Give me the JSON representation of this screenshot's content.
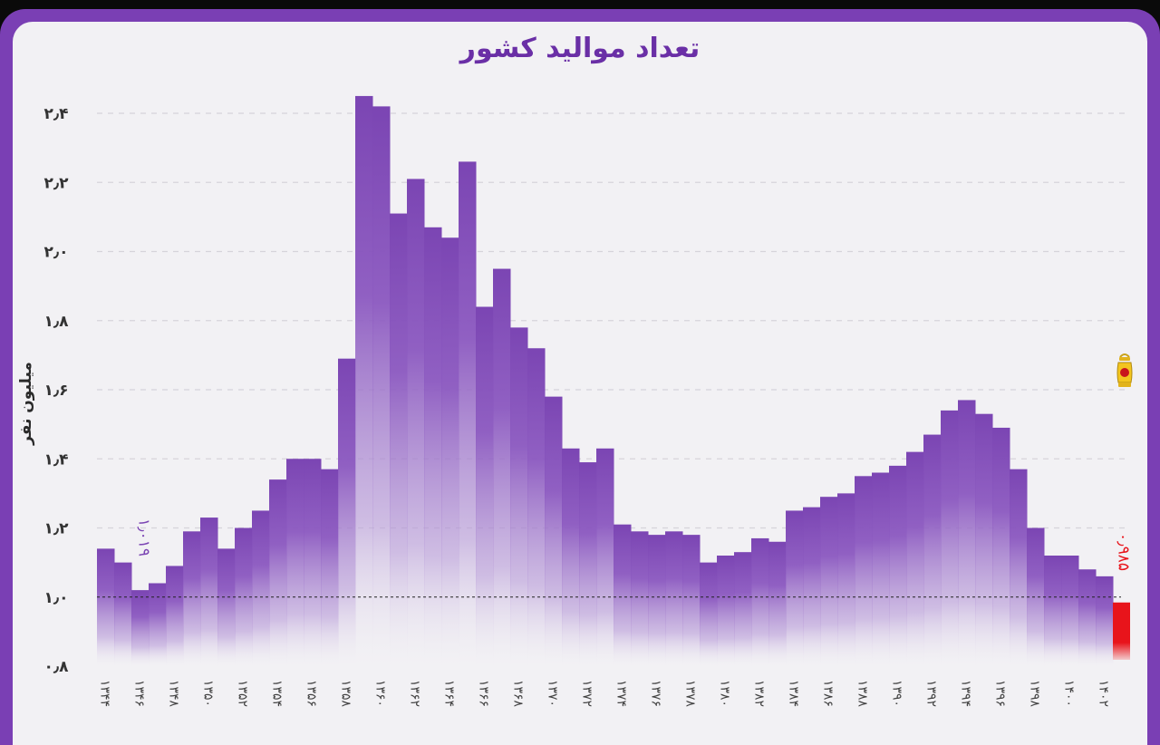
{
  "title": "تعداد موالید کشور",
  "colors": {
    "frame": "#7a3fb4",
    "bar": "#7b45b3",
    "highlight": "#e8141b",
    "annotation_first": "#7b45b3"
  },
  "chart_data": {
    "type": "bar",
    "title": "تعداد موالید کشور",
    "xlabel": "",
    "ylabel": "میلیون نفر",
    "ylim": [
      0.8,
      2.5
    ],
    "grid": true,
    "y_ticks": [
      "۰٫۸",
      "۱٫۰",
      "۱٫۲",
      "۱٫۴",
      "۱٫۶",
      "۱٫۸",
      "۲٫۰",
      "۲٫۲",
      "۲٫۴"
    ],
    "y_tick_values": [
      0.8,
      1.0,
      1.2,
      1.4,
      1.6,
      1.8,
      2.0,
      2.2,
      2.4
    ],
    "x_tick_labels": [
      "۱۳۴۴",
      "۱۳۴۶",
      "۱۳۴۸",
      "۱۳۵۰",
      "۱۳۵۲",
      "۱۳۵۴",
      "۱۳۵۶",
      "۱۳۵۸",
      "۱۳۶۰",
      "۱۳۶۲",
      "۱۳۶۴",
      "۱۳۶۶",
      "۱۳۶۸",
      "۱۳۷۰",
      "۱۳۷۲",
      "۱۳۷۴",
      "۱۳۷۶",
      "۱۳۷۸",
      "۱۳۸۰",
      "۱۳۸۲",
      "۱۳۸۴",
      "۱۳۸۶",
      "۱۳۸۸",
      "۱۳۹۰",
      "۱۳۹۲",
      "۱۳۹۴",
      "۱۳۹۶",
      "۱۳۹۸",
      "۱۴۰۰",
      "۱۴۰۲"
    ],
    "categories": [
      "1344",
      "1345",
      "1346",
      "1347",
      "1348",
      "1349",
      "1350",
      "1351",
      "1352",
      "1353",
      "1354",
      "1355",
      "1356",
      "1357",
      "1358",
      "1359",
      "1360",
      "1361",
      "1362",
      "1363",
      "1364",
      "1365",
      "1366",
      "1367",
      "1368",
      "1369",
      "1370",
      "1371",
      "1372",
      "1373",
      "1374",
      "1375",
      "1376",
      "1377",
      "1378",
      "1379",
      "1380",
      "1381",
      "1382",
      "1383",
      "1384",
      "1385",
      "1386",
      "1387",
      "1388",
      "1389",
      "1390",
      "1391",
      "1392",
      "1393",
      "1394",
      "1395",
      "1396",
      "1397",
      "1398",
      "1399",
      "1400",
      "1401",
      "1402",
      "1403"
    ],
    "values": [
      1.14,
      1.1,
      1.02,
      1.04,
      1.09,
      1.19,
      1.23,
      1.14,
      1.2,
      1.25,
      1.34,
      1.4,
      1.4,
      1.37,
      1.69,
      2.45,
      2.42,
      2.11,
      2.21,
      2.07,
      2.04,
      2.26,
      1.84,
      1.95,
      1.78,
      1.72,
      1.58,
      1.43,
      1.39,
      1.43,
      1.21,
      1.19,
      1.18,
      1.19,
      1.18,
      1.1,
      1.12,
      1.13,
      1.17,
      1.16,
      1.25,
      1.26,
      1.29,
      1.3,
      1.35,
      1.36,
      1.38,
      1.42,
      1.47,
      1.54,
      1.57,
      1.53,
      1.49,
      1.37,
      1.2,
      1.12,
      1.12,
      1.08,
      1.06,
      0.98
    ],
    "reference_line": 1.0,
    "annotations": [
      {
        "label": "۱٫۰۱۹",
        "category": "1346"
      },
      {
        "label": "۰٫۹۸۵",
        "category": "1403"
      }
    ]
  }
}
